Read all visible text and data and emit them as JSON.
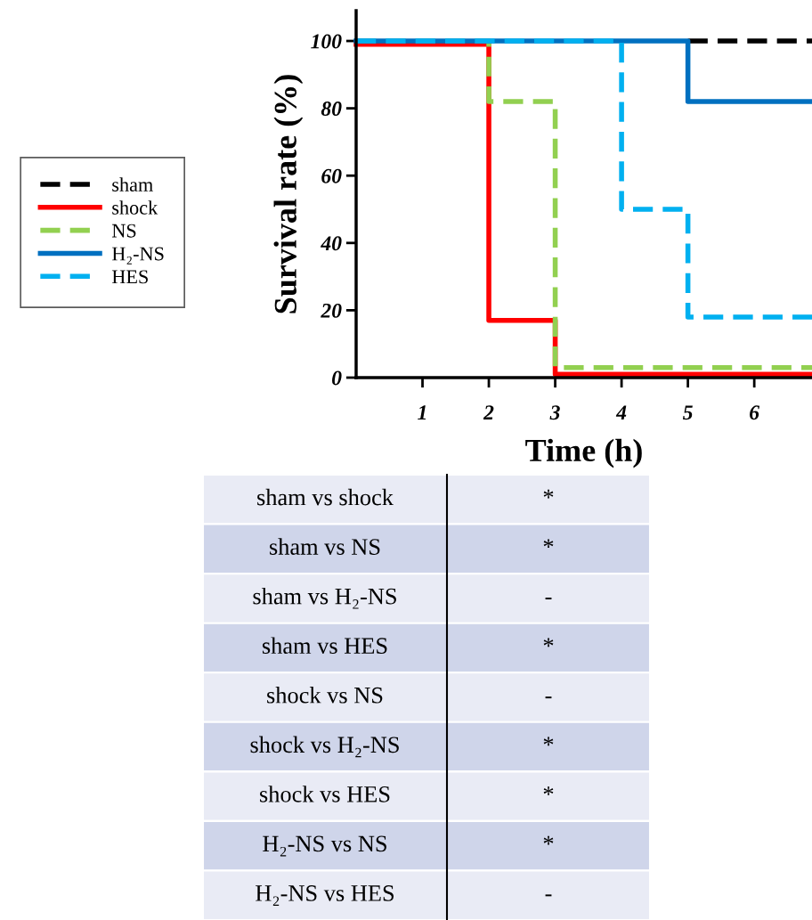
{
  "chart_data": {
    "type": "step",
    "xlabel": "Time (h)",
    "ylabel": "Survival rate (%)",
    "xlim": [
      0,
      6.87
    ],
    "ylim": [
      0,
      109
    ],
    "xticks": [
      1,
      2,
      3,
      4,
      5,
      6
    ],
    "yticks": [
      0,
      20,
      40,
      60,
      80,
      100
    ],
    "legend": "left",
    "grid": false,
    "series": [
      {
        "name": "sham",
        "color": "#000000",
        "line_style": "dashed",
        "x": [
          5,
          6.87
        ],
        "values": [
          100,
          100
        ]
      },
      {
        "name": "shock",
        "color": "#ff0000",
        "line_style": "solid",
        "x": [
          0,
          2,
          3,
          6.87
        ],
        "values": [
          99,
          17,
          1,
          1
        ]
      },
      {
        "name": "NS",
        "color": "#92d050",
        "line_style": "dashed",
        "x": [
          0,
          2,
          3,
          6.87
        ],
        "values": [
          100,
          82,
          3,
          3
        ]
      },
      {
        "name": "H₂-NS",
        "color": "#0070c0",
        "line_style": "solid",
        "x": [
          0,
          5,
          6.87
        ],
        "values": [
          100,
          82,
          82
        ]
      },
      {
        "name": "HES",
        "color": "#00b0f0",
        "line_style": "dashed",
        "x": [
          0,
          4,
          5,
          6.87
        ],
        "values": [
          100,
          50,
          18,
          18
        ]
      }
    ],
    "annotations": [
      "sham vs shock",
      "*",
      "sham vs NS",
      "*",
      "sham vs H₂-NS",
      "-",
      "sham vs HES",
      "*",
      "shock vs NS",
      "-",
      "shock vs H₂-NS",
      "*",
      "shock vs HES",
      "*",
      "H₂-NS vs NS",
      "*",
      "H₂-NS vs HES",
      "-"
    ]
  }
}
